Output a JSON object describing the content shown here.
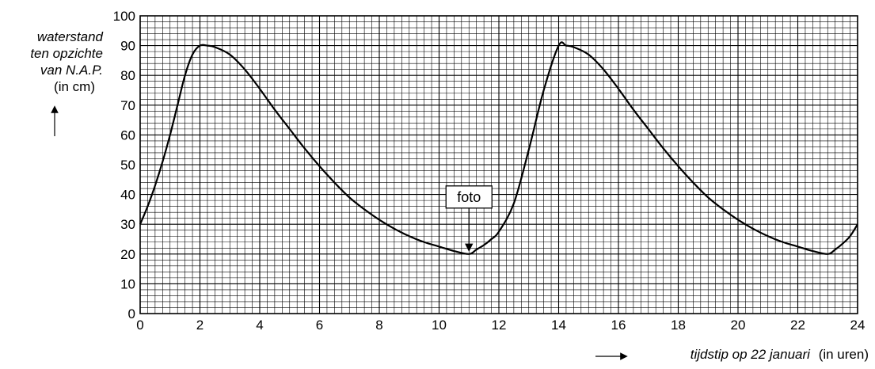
{
  "chart_data": {
    "type": "line",
    "title": "",
    "ylabel": {
      "lines": [
        "waterstand",
        "ten opzichte",
        "van N.A.P."
      ],
      "unit": "(in cm)"
    },
    "xlabel": {
      "text": "tijdstip op 22 januari",
      "unit": "(in uren)"
    },
    "xlim": [
      0,
      24
    ],
    "ylim": [
      0,
      100
    ],
    "x_ticks": [
      0,
      2,
      4,
      6,
      8,
      10,
      12,
      14,
      16,
      18,
      20,
      22,
      24
    ],
    "y_ticks": [
      0,
      10,
      20,
      30,
      40,
      50,
      60,
      70,
      80,
      90,
      100
    ],
    "grid": true,
    "series": [
      {
        "x": [
          0,
          0.25,
          0.5,
          0.75,
          1,
          1.25,
          1.5,
          1.75,
          2,
          2.25,
          2.5,
          3,
          3.5,
          4,
          4.5,
          5,
          5.5,
          6,
          6.5,
          7,
          7.5,
          8,
          8.5,
          9,
          9.5,
          10,
          10.5,
          11,
          11.25,
          11.5,
          11.75,
          12,
          12.5,
          13,
          13.5,
          14,
          14.25,
          14.5,
          15,
          15.5,
          16,
          16.5,
          17,
          17.5,
          18,
          18.5,
          19,
          19.5,
          20,
          20.5,
          21,
          21.5,
          22,
          22.5,
          23,
          23.25,
          23.5,
          23.75,
          24
        ],
        "y": [
          30,
          36,
          43,
          51,
          60,
          70,
          80,
          87,
          90,
          90,
          89.5,
          87,
          82,
          75.5,
          68.5,
          62,
          55.5,
          49.5,
          44,
          39,
          35,
          31.5,
          28.5,
          26,
          24,
          22.5,
          21,
          20,
          21.5,
          23,
          25,
          27.5,
          37,
          55,
          75,
          90,
          90,
          89.5,
          87,
          82,
          75.5,
          68.5,
          62,
          55.5,
          49.5,
          44,
          39,
          35,
          31.5,
          28.5,
          26,
          24,
          22.5,
          21,
          20,
          21.5,
          23.5,
          26,
          30
        ]
      }
    ],
    "annotations": [
      {
        "text": "foto",
        "x": 11,
        "y": 20
      }
    ],
    "colors": {
      "line": "#000000",
      "grid": "#000000",
      "background": "#ffffff"
    }
  }
}
